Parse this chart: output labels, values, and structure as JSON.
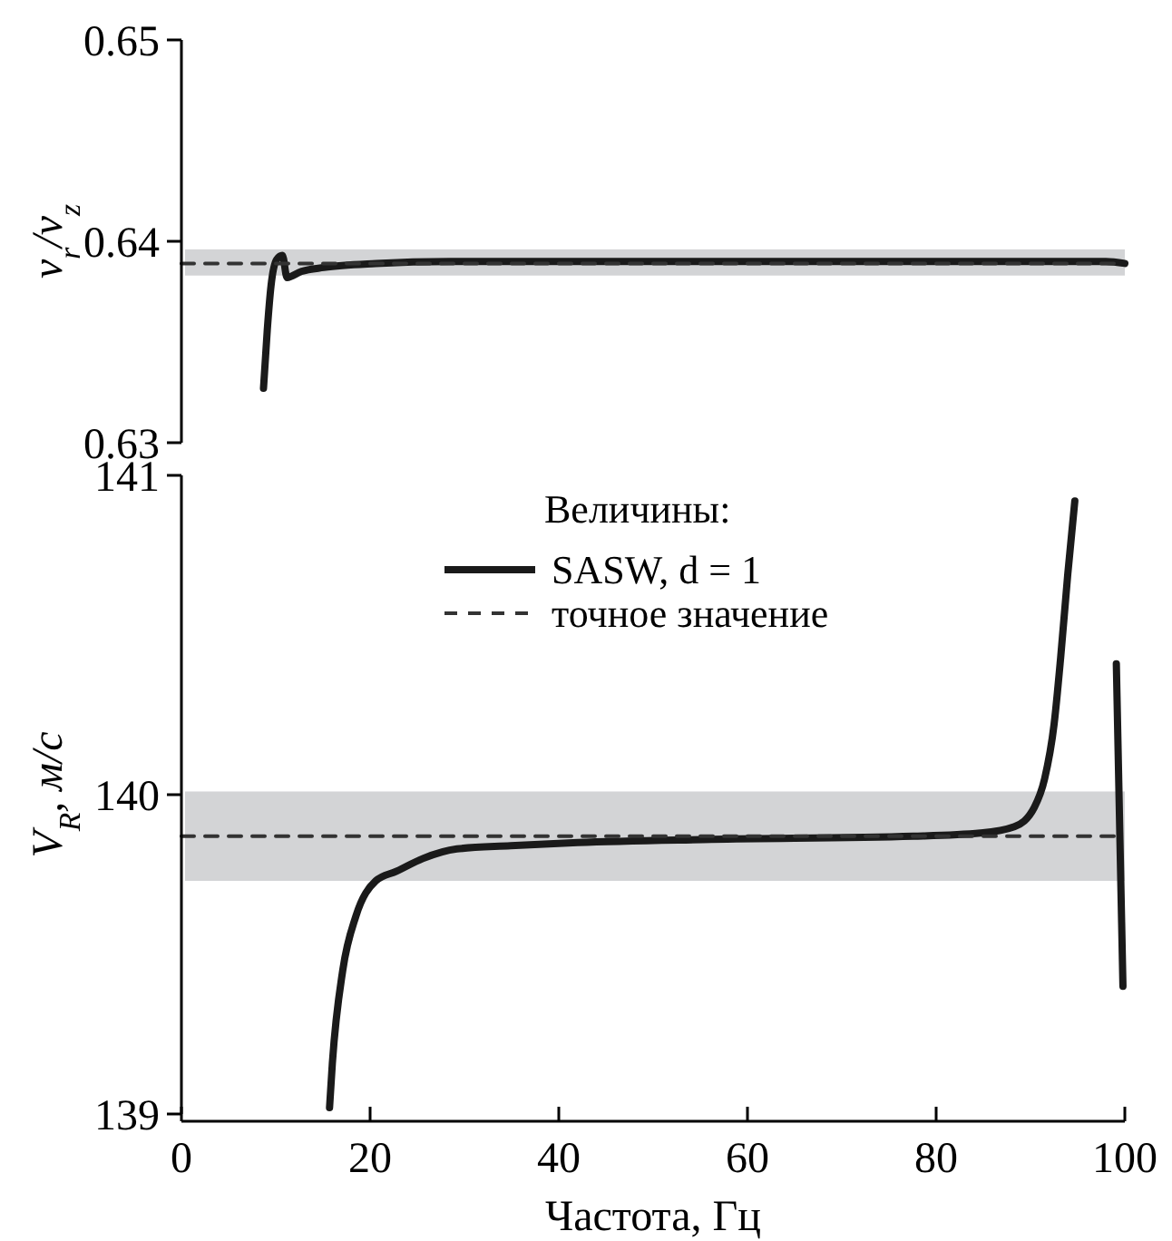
{
  "chart_data": [
    {
      "type": "line",
      "ylabel": "v$_{r}$/v$_{z}$",
      "xlim": [
        0,
        100
      ],
      "ylim": [
        0.63,
        0.65
      ],
      "yticks": [
        0.63,
        0.64,
        0.65
      ],
      "tick_labels": "y",
      "bands": [
        {
          "axis": "y",
          "from": 0.6383,
          "to": 0.6396,
          "color": "#d3d4d6"
        }
      ],
      "series": [
        {
          "color": "#1a1a1a",
          "x": [
            8.7,
            9.1,
            9.5,
            10.1,
            10.7,
            11.2,
            12.7,
            15.1,
            20.6,
            28.5,
            50,
            70,
            90,
            98,
            100
          ],
          "values": [
            0.6327,
            0.6356,
            0.6378,
            0.6391,
            0.6393,
            0.6382,
            0.6385,
            0.6387,
            0.6389,
            0.639,
            0.639,
            0.639,
            0.639,
            0.639,
            0.6389
          ]
        },
        {
          "color": "#333333",
          "line_style": "dashed",
          "x": [
            0,
            100
          ],
          "values": [
            0.6389,
            0.6389
          ]
        }
      ]
    },
    {
      "type": "line",
      "xlabel": "Частота, Гц",
      "ylabel": "V$_{R}$, м/с",
      "legend_title": "Величины:",
      "legend": "top",
      "xlim": [
        0,
        100
      ],
      "ylim": [
        139,
        141
      ],
      "xticks": [
        0,
        20,
        40,
        60,
        80,
        100
      ],
      "yticks": [
        139,
        140,
        141
      ],
      "bands": [
        {
          "axis": "y",
          "from": 139.73,
          "to": 140.01,
          "color": "#d3d4d6"
        }
      ],
      "series": [
        {
          "name": "SASW, d = 1",
          "color": "#1a1a1a",
          "x": [
            15.7,
            16.0,
            17.1,
            18.5,
            20.6,
            22.8,
            25.6,
            29.2,
            34.9,
            42,
            56.2,
            77.6,
            84.7,
            88.3,
            90.4,
            91.5,
            92.5,
            93.2,
            93.95,
            94.7,
            97,
            99.1,
            99.8
          ],
          "values": [
            139.02,
            139.16,
            139.45,
            139.62,
            139.73,
            139.76,
            139.8,
            139.83,
            139.84,
            139.85,
            139.86,
            139.87,
            139.88,
            139.9,
            139.96,
            140.05,
            140.22,
            140.43,
            140.69,
            140.92,
            null,
            140.41,
            139.4
          ]
        },
        {
          "name": "точное значение",
          "color": "#333333",
          "line_style": "dashed",
          "x": [
            0,
            100
          ],
          "values": [
            139.87,
            139.87
          ]
        }
      ]
    }
  ]
}
